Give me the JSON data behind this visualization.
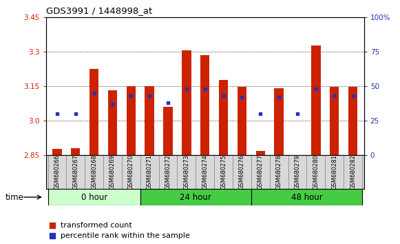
{
  "title": "GDS3991 / 1448998_at",
  "samples": [
    "GSM680266",
    "GSM680267",
    "GSM680268",
    "GSM680269",
    "GSM680270",
    "GSM680271",
    "GSM680272",
    "GSM680273",
    "GSM680274",
    "GSM680275",
    "GSM680276",
    "GSM680277",
    "GSM680278",
    "GSM680279",
    "GSM680280",
    "GSM680281",
    "GSM680282"
  ],
  "bar_values": [
    2.875,
    2.878,
    3.225,
    3.13,
    3.15,
    3.15,
    3.06,
    3.305,
    3.285,
    3.175,
    3.145,
    2.867,
    3.14,
    2.845,
    3.325,
    3.145,
    3.145
  ],
  "percentile_values": [
    30,
    30,
    45,
    37,
    43,
    43,
    38,
    48,
    48,
    43,
    42,
    30,
    42,
    30,
    48,
    43,
    43
  ],
  "baseline": 2.85,
  "ylim_left": [
    2.85,
    3.45
  ],
  "ylim_right": [
    0,
    100
  ],
  "yticks_left": [
    2.85,
    3.0,
    3.15,
    3.3,
    3.45
  ],
  "yticks_right": [
    0,
    25,
    50,
    75,
    100
  ],
  "bar_color": "#cc2200",
  "dot_color": "#2233bb",
  "group_defs": [
    {
      "label": "0 hour",
      "start": 0,
      "end": 4,
      "color": "#ccffcc"
    },
    {
      "label": "24 hour",
      "start": 5,
      "end": 10,
      "color": "#44cc44"
    },
    {
      "label": "48 hour",
      "start": 11,
      "end": 16,
      "color": "#44cc44"
    }
  ],
  "left_label_color": "#cc2200",
  "right_label_color": "#2233bb",
  "grid_yticks": [
    3.0,
    3.15,
    3.3
  ],
  "bar_width": 0.5
}
